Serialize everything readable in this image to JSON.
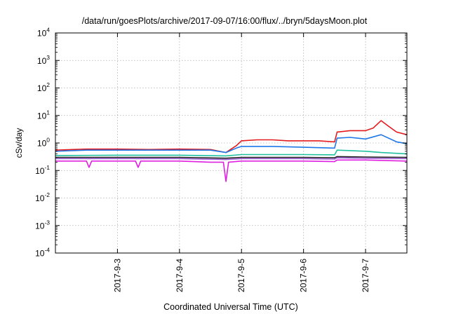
{
  "chart_data": {
    "type": "line",
    "title": "/data/run/goesPlots/archive/2017-09-07/16:00/flux/../bryn/5daysMoon.plot",
    "xlabel": "Coordinated Universal Time (UTC)",
    "ylabel": "cSv/day",
    "y_scale": "log",
    "ylim": [
      0.0001,
      10000
    ],
    "y_ticks": [
      {
        "value": 0.0001,
        "base": "10",
        "exp": "-4"
      },
      {
        "value": 0.001,
        "base": "10",
        "exp": "-3"
      },
      {
        "value": 0.01,
        "base": "10",
        "exp": "-2"
      },
      {
        "value": 0.1,
        "base": "10",
        "exp": "-1"
      },
      {
        "value": 1,
        "base": "10",
        "exp": "0"
      },
      {
        "value": 10,
        "base": "10",
        "exp": "1"
      },
      {
        "value": 100,
        "base": "10",
        "exp": "2"
      },
      {
        "value": 1000,
        "base": "10",
        "exp": "3"
      },
      {
        "value": 10000,
        "base": "10",
        "exp": "4"
      }
    ],
    "xlim": [
      "2017-09-02 00:00",
      "2017-09-07 16:00"
    ],
    "x_ticks": [
      "2017-9-3",
      "2017-9-4",
      "2017-9-5",
      "2017-9-6",
      "2017-9-7"
    ],
    "grid": true,
    "series": [
      {
        "color": "#e41a1c",
        "x": [
          "2017-09-02 00:00",
          "2017-09-02 12:00",
          "2017-09-03 00:00",
          "2017-09-03 12:00",
          "2017-09-04 00:00",
          "2017-09-04 12:00",
          "2017-09-04 18:00",
          "2017-09-04 22:00",
          "2017-09-05 00:00",
          "2017-09-05 06:00",
          "2017-09-05 12:00",
          "2017-09-05 18:00",
          "2017-09-06 00:00",
          "2017-09-06 06:00",
          "2017-09-06 12:00",
          "2017-09-06 13:00",
          "2017-09-06 18:00",
          "2017-09-07 00:00",
          "2017-09-07 03:00",
          "2017-09-07 06:00",
          "2017-09-07 09:00",
          "2017-09-07 12:00",
          "2017-09-07 16:00"
        ],
        "y": [
          0.55,
          0.6,
          0.6,
          0.58,
          0.6,
          0.58,
          0.45,
          0.8,
          1.2,
          1.3,
          1.3,
          1.2,
          1.2,
          1.2,
          1.1,
          2.5,
          2.8,
          2.8,
          3.5,
          6.5,
          4.0,
          2.5,
          2.0
        ]
      },
      {
        "color": "#1f78e8",
        "x": [
          "2017-09-02 00:00",
          "2017-09-02 12:00",
          "2017-09-03 00:00",
          "2017-09-03 12:00",
          "2017-09-04 00:00",
          "2017-09-04 12:00",
          "2017-09-04 18:00",
          "2017-09-04 22:00",
          "2017-09-05 00:00",
          "2017-09-05 12:00",
          "2017-09-06 00:00",
          "2017-09-06 12:00",
          "2017-09-06 13:00",
          "2017-09-06 18:00",
          "2017-09-07 00:00",
          "2017-09-07 06:00",
          "2017-09-07 12:00",
          "2017-09-07 16:00"
        ],
        "y": [
          0.5,
          0.55,
          0.55,
          0.55,
          0.55,
          0.55,
          0.45,
          0.65,
          0.75,
          0.75,
          0.7,
          0.65,
          1.5,
          1.6,
          1.4,
          2.0,
          1.1,
          0.95
        ]
      },
      {
        "color": "#20c0a0",
        "x": [
          "2017-09-02 00:00",
          "2017-09-03 00:00",
          "2017-09-04 00:00",
          "2017-09-04 18:00",
          "2017-09-05 00:00",
          "2017-09-06 00:00",
          "2017-09-06 12:00",
          "2017-09-06 13:00",
          "2017-09-07 00:00",
          "2017-09-07 06:00",
          "2017-09-07 16:00"
        ],
        "y": [
          0.35,
          0.36,
          0.36,
          0.34,
          0.38,
          0.38,
          0.37,
          0.55,
          0.5,
          0.45,
          0.4
        ]
      },
      {
        "color": "#222222",
        "x": [
          "2017-09-02 00:00",
          "2017-09-03 00:00",
          "2017-09-04 00:00",
          "2017-09-04 18:00",
          "2017-09-05 00:00",
          "2017-09-06 00:00",
          "2017-09-06 12:00",
          "2017-09-06 13:00",
          "2017-09-07 00:00",
          "2017-09-07 16:00"
        ],
        "y": [
          0.3,
          0.3,
          0.3,
          0.28,
          0.3,
          0.3,
          0.29,
          0.32,
          0.31,
          0.3
        ]
      },
      {
        "color": "#9a5cd0",
        "x": [
          "2017-09-02 00:00",
          "2017-09-03 00:00",
          "2017-09-04 00:00",
          "2017-09-04 18:00",
          "2017-09-05 00:00",
          "2017-09-06 00:00",
          "2017-09-06 12:00",
          "2017-09-06 13:00",
          "2017-09-07 00:00",
          "2017-09-07 16:00"
        ],
        "y": [
          0.27,
          0.27,
          0.27,
          0.25,
          0.27,
          0.27,
          0.26,
          0.29,
          0.28,
          0.27
        ]
      },
      {
        "color": "#e020e0",
        "x": [
          "2017-09-02 00:00",
          "2017-09-02 12:00",
          "2017-09-02 13:00",
          "2017-09-02 14:00",
          "2017-09-03 00:00",
          "2017-09-03 07:00",
          "2017-09-03 08:00",
          "2017-09-03 09:00",
          "2017-09-04 00:00",
          "2017-09-04 12:00",
          "2017-09-04 17:00",
          "2017-09-04 18:00",
          "2017-09-04 19:00",
          "2017-09-05 00:00",
          "2017-09-06 00:00",
          "2017-09-06 12:00",
          "2017-09-06 13:00",
          "2017-09-07 00:00",
          "2017-09-07 16:00"
        ],
        "y": [
          0.22,
          0.22,
          0.13,
          0.22,
          0.22,
          0.22,
          0.13,
          0.22,
          0.22,
          0.2,
          0.2,
          0.04,
          0.2,
          0.22,
          0.22,
          0.21,
          0.24,
          0.24,
          0.22
        ]
      }
    ]
  }
}
